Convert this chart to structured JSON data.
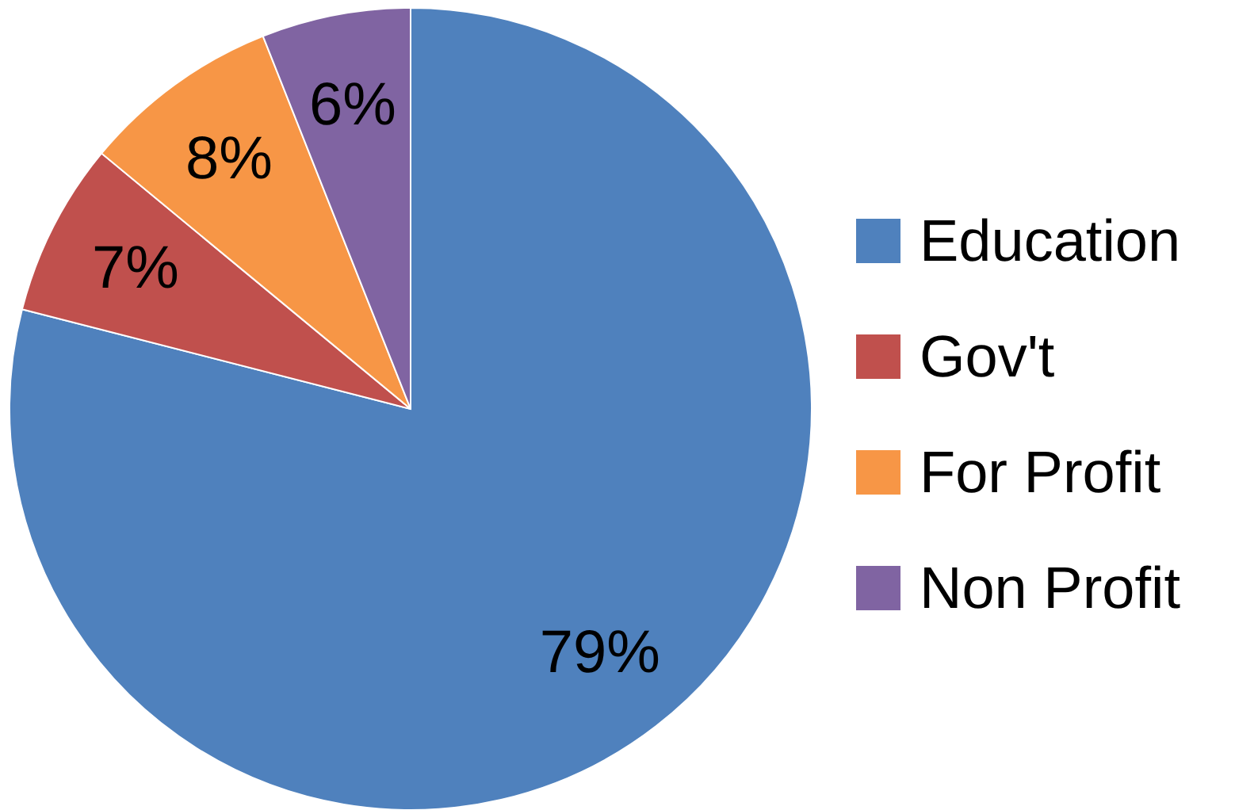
{
  "chart_data": {
    "type": "pie",
    "categories": [
      "Education",
      "Gov't",
      "For Profit",
      "Non Profit"
    ],
    "values": [
      79,
      7,
      8,
      6
    ],
    "colors": [
      "#4f81bd",
      "#c0504d",
      "#f79646",
      "#8064a2"
    ],
    "value_labels": [
      "79%",
      "7%",
      "8%",
      "6%"
    ],
    "legend": "right"
  }
}
